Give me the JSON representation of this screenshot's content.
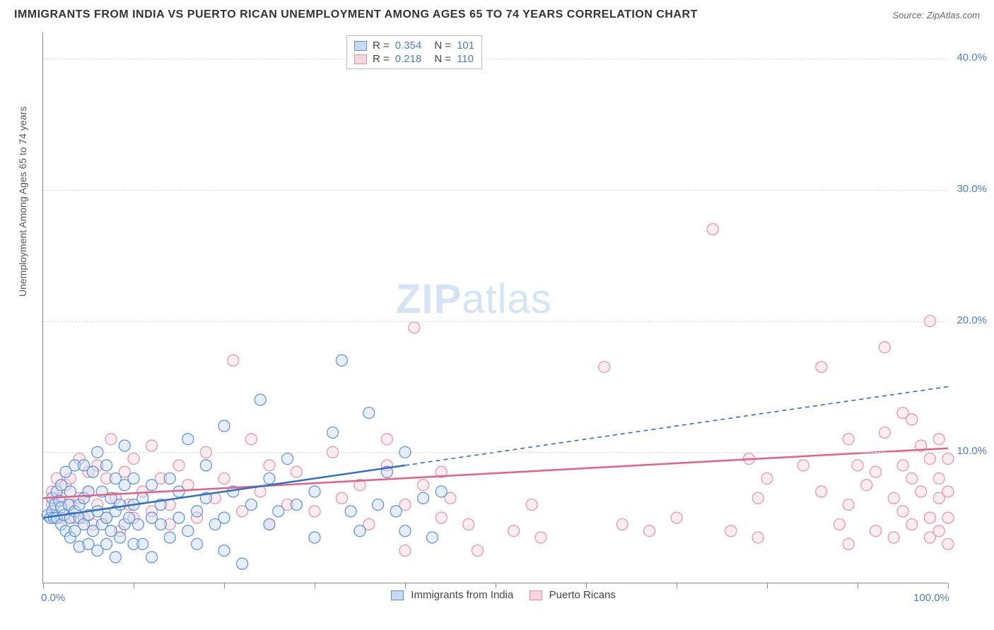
{
  "title": "IMMIGRANTS FROM INDIA VS PUERTO RICAN UNEMPLOYMENT AMONG AGES 65 TO 74 YEARS CORRELATION CHART",
  "source": "Source: ZipAtlas.com",
  "y_axis_label": "Unemployment Among Ages 65 to 74 years",
  "watermark": {
    "part1": "ZIP",
    "part2": "atlas"
  },
  "x_axis": {
    "min": 0,
    "max": 100,
    "ticks": [
      0,
      10,
      20,
      30,
      40,
      50,
      60,
      70,
      80,
      90,
      100
    ],
    "label_min": "0.0%",
    "label_max": "100.0%"
  },
  "y_axis": {
    "min": 0,
    "max": 42,
    "ticks": [
      10,
      20,
      30,
      40
    ],
    "tick_labels": [
      "10.0%",
      "20.0%",
      "30.0%",
      "40.0%"
    ]
  },
  "colors": {
    "blue_fill": "#c7dbf2",
    "blue_stroke": "#5a8fd6",
    "blue_line": "#2f6fc4",
    "pink_fill": "#f6d5de",
    "pink_stroke": "#e390a8",
    "pink_line": "#e55f86",
    "tick_text": "#4a7ec9",
    "grid": "#dddddd",
    "axis": "#888888"
  },
  "marker_radius": 8,
  "marker_fill_opacity": 0.45,
  "line_width": 2.5,
  "stat_legend": [
    {
      "series": "blue",
      "R": "0.354",
      "N": "101"
    },
    {
      "series": "pink",
      "R": "0.218",
      "N": "110"
    }
  ],
  "bottom_legend": [
    {
      "series": "blue",
      "label": "Immigrants from India"
    },
    {
      "series": "pink",
      "label": "Puerto Ricans"
    }
  ],
  "trend_lines": {
    "blue": {
      "solid": [
        [
          0,
          5.0
        ],
        [
          40,
          9.0
        ]
      ],
      "dashed": [
        [
          40,
          9.0
        ],
        [
          100,
          15.0
        ]
      ]
    },
    "pink": {
      "solid": [
        [
          0,
          6.5
        ],
        [
          100,
          10.3
        ]
      ]
    }
  },
  "series": {
    "blue": [
      [
        0.5,
        5.2
      ],
      [
        0.8,
        5.0
      ],
      [
        1,
        5.5
      ],
      [
        1,
        6.5
      ],
      [
        1.2,
        5.0
      ],
      [
        1.3,
        6.0
      ],
      [
        1.5,
        7.0
      ],
      [
        1.5,
        5.0
      ],
      [
        1.8,
        6.3
      ],
      [
        2,
        4.5
      ],
      [
        2,
        5.8
      ],
      [
        2,
        7.5
      ],
      [
        2.3,
        5.2
      ],
      [
        2.5,
        4.0
      ],
      [
        2.5,
        8.5
      ],
      [
        2.8,
        6.0
      ],
      [
        3,
        5.0
      ],
      [
        3,
        3.5
      ],
      [
        3,
        7.0
      ],
      [
        3.5,
        4.0
      ],
      [
        3.5,
        5.5
      ],
      [
        3.5,
        9.0
      ],
      [
        4,
        5.0
      ],
      [
        4,
        6.0
      ],
      [
        4,
        2.8
      ],
      [
        4.5,
        6.5
      ],
      [
        4.5,
        9.0
      ],
      [
        4.5,
        4.5
      ],
      [
        5,
        3.0
      ],
      [
        5,
        5.2
      ],
      [
        5,
        7.0
      ],
      [
        5.5,
        8.5
      ],
      [
        5.5,
        4.0
      ],
      [
        6,
        10.0
      ],
      [
        6,
        5.5
      ],
      [
        6,
        2.5
      ],
      [
        6.5,
        7.0
      ],
      [
        6.5,
        4.5
      ],
      [
        7,
        3.0
      ],
      [
        7,
        5.0
      ],
      [
        7,
        9.0
      ],
      [
        7.5,
        6.5
      ],
      [
        7.5,
        4.0
      ],
      [
        8,
        2.0
      ],
      [
        8,
        5.5
      ],
      [
        8,
        8.0
      ],
      [
        8.5,
        6.0
      ],
      [
        8.5,
        3.5
      ],
      [
        9,
        4.5
      ],
      [
        9,
        7.5
      ],
      [
        9,
        10.5
      ],
      [
        9.5,
        5.0
      ],
      [
        10,
        3.0
      ],
      [
        10,
        6.0
      ],
      [
        10,
        8.0
      ],
      [
        10.5,
        4.5
      ],
      [
        11,
        6.5
      ],
      [
        11,
        3.0
      ],
      [
        12,
        5.0
      ],
      [
        12,
        2.0
      ],
      [
        12,
        7.5
      ],
      [
        13,
        4.5
      ],
      [
        13,
        6.0
      ],
      [
        14,
        3.5
      ],
      [
        14,
        8.0
      ],
      [
        15,
        5.0
      ],
      [
        15,
        7.0
      ],
      [
        16,
        4.0
      ],
      [
        16,
        11.0
      ],
      [
        17,
        5.5
      ],
      [
        17,
        3.0
      ],
      [
        18,
        6.5
      ],
      [
        18,
        9.0
      ],
      [
        19,
        4.5
      ],
      [
        20,
        5.0
      ],
      [
        20,
        2.5
      ],
      [
        20,
        12.0
      ],
      [
        21,
        7.0
      ],
      [
        22,
        1.5
      ],
      [
        23,
        6.0
      ],
      [
        24,
        14.0
      ],
      [
        25,
        4.5
      ],
      [
        25,
        8.0
      ],
      [
        26,
        5.5
      ],
      [
        27,
        9.5
      ],
      [
        28,
        6.0
      ],
      [
        30,
        3.5
      ],
      [
        30,
        7.0
      ],
      [
        32,
        11.5
      ],
      [
        33,
        17.0
      ],
      [
        34,
        5.5
      ],
      [
        35,
        4.0
      ],
      [
        36,
        13.0
      ],
      [
        37,
        6.0
      ],
      [
        38,
        8.5
      ],
      [
        39,
        5.5
      ],
      [
        40,
        4.0
      ],
      [
        40,
        10.0
      ],
      [
        42,
        6.5
      ],
      [
        43,
        3.5
      ],
      [
        44,
        7.0
      ]
    ],
    "pink": [
      [
        1,
        7.0
      ],
      [
        1,
        6.0
      ],
      [
        1.5,
        8.0
      ],
      [
        2,
        6.5
      ],
      [
        2,
        5.0
      ],
      [
        2.5,
        7.5
      ],
      [
        3,
        6.0
      ],
      [
        3,
        8.0
      ],
      [
        3.5,
        5.0
      ],
      [
        4,
        9.5
      ],
      [
        4,
        6.5
      ],
      [
        4.5,
        5.0
      ],
      [
        5,
        8.5
      ],
      [
        5,
        7.0
      ],
      [
        5.5,
        4.5
      ],
      [
        6,
        9.0
      ],
      [
        6,
        6.0
      ],
      [
        7,
        8.0
      ],
      [
        7,
        5.0
      ],
      [
        7.5,
        11.0
      ],
      [
        8,
        6.5
      ],
      [
        8.5,
        4.0
      ],
      [
        9,
        8.5
      ],
      [
        9.5,
        6.0
      ],
      [
        10,
        5.0
      ],
      [
        10,
        9.5
      ],
      [
        11,
        7.0
      ],
      [
        12,
        10.5
      ],
      [
        12,
        5.5
      ],
      [
        13,
        8.0
      ],
      [
        14,
        6.0
      ],
      [
        14,
        4.5
      ],
      [
        15,
        9.0
      ],
      [
        16,
        7.5
      ],
      [
        17,
        5.0
      ],
      [
        18,
        10.0
      ],
      [
        19,
        6.5
      ],
      [
        20,
        8.0
      ],
      [
        21,
        17.0
      ],
      [
        22,
        5.5
      ],
      [
        23,
        11.0
      ],
      [
        24,
        7.0
      ],
      [
        25,
        4.5
      ],
      [
        25,
        9.0
      ],
      [
        27,
        6.0
      ],
      [
        28,
        8.5
      ],
      [
        30,
        5.5
      ],
      [
        32,
        10.0
      ],
      [
        33,
        6.5
      ],
      [
        35,
        7.5
      ],
      [
        36,
        4.5
      ],
      [
        38,
        9.0
      ],
      [
        38,
        11.0
      ],
      [
        40,
        6.0
      ],
      [
        40,
        2.5
      ],
      [
        41,
        19.5
      ],
      [
        42,
        7.5
      ],
      [
        44,
        5.0
      ],
      [
        44,
        8.5
      ],
      [
        45,
        6.5
      ],
      [
        47,
        4.5
      ],
      [
        48,
        2.5
      ],
      [
        52,
        4.0
      ],
      [
        54,
        6.0
      ],
      [
        55,
        3.5
      ],
      [
        62,
        16.5
      ],
      [
        64,
        4.5
      ],
      [
        67,
        4.0
      ],
      [
        70,
        5.0
      ],
      [
        74,
        27.0
      ],
      [
        76,
        4.0
      ],
      [
        78,
        9.5
      ],
      [
        79,
        6.5
      ],
      [
        79,
        3.5
      ],
      [
        80,
        8.0
      ],
      [
        84,
        9.0
      ],
      [
        86,
        7.0
      ],
      [
        86,
        16.5
      ],
      [
        88,
        4.5
      ],
      [
        89,
        11.0
      ],
      [
        89,
        6.0
      ],
      [
        89,
        3.0
      ],
      [
        90,
        9.0
      ],
      [
        91,
        7.5
      ],
      [
        92,
        4.0
      ],
      [
        92,
        8.5
      ],
      [
        93,
        11.5
      ],
      [
        93,
        18.0
      ],
      [
        94,
        6.5
      ],
      [
        94,
        3.5
      ],
      [
        95,
        13.0
      ],
      [
        95,
        9.0
      ],
      [
        95,
        5.5
      ],
      [
        96,
        8.0
      ],
      [
        96,
        4.5
      ],
      [
        96,
        12.5
      ],
      [
        97,
        10.5
      ],
      [
        97,
        7.0
      ],
      [
        98,
        5.0
      ],
      [
        98,
        9.5
      ],
      [
        98,
        20.0
      ],
      [
        98,
        3.5
      ],
      [
        99,
        6.5
      ],
      [
        99,
        11.0
      ],
      [
        99,
        4.0
      ],
      [
        99,
        8.0
      ],
      [
        100,
        7.0
      ],
      [
        100,
        5.0
      ],
      [
        100,
        9.5
      ],
      [
        100,
        3.0
      ]
    ]
  }
}
